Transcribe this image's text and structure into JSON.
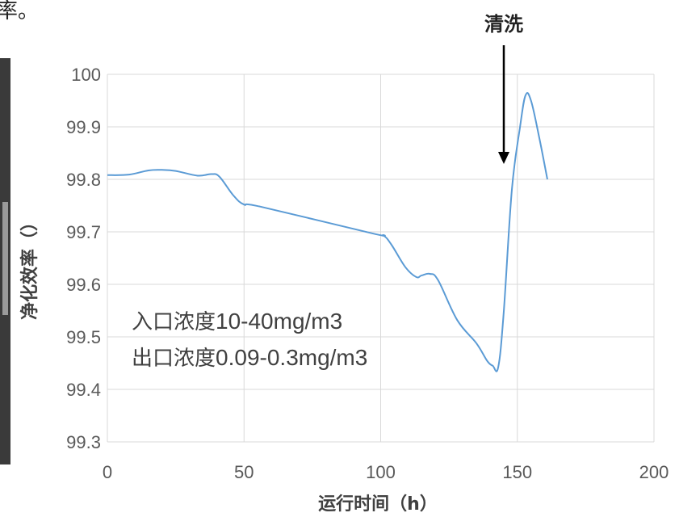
{
  "page_fragment": "率。",
  "chart_data": {
    "type": "line",
    "xlabel": "运行时间（h）",
    "ylabel": "净化效率（）",
    "xlim": [
      0,
      200
    ],
    "ylim": [
      99.3,
      100
    ],
    "xticks": [
      0,
      50,
      100,
      150,
      200
    ],
    "yticks": [
      99.3,
      99.4,
      99.5,
      99.6,
      99.7,
      99.8,
      99.9,
      100
    ],
    "xtick_labels": [
      "0",
      "50",
      "100",
      "150",
      "200"
    ],
    "ytick_labels": [
      "99.3",
      "99.4",
      "99.5",
      "99.6",
      "99.7",
      "99.8",
      "99.9",
      "100"
    ],
    "grid": true,
    "line_color": "#5b9bd5",
    "series": [
      {
        "x": [
          0,
          8,
          15,
          20,
          25,
          33,
          38,
          41,
          46,
          50,
          56,
          97,
          101,
          104,
          109,
          113,
          115,
          118,
          121,
          128,
          135,
          139,
          141,
          143,
          145,
          148,
          151,
          153,
          155,
          158,
          161
        ],
        "y": [
          99.808,
          99.809,
          99.817,
          99.818,
          99.816,
          99.807,
          99.81,
          99.805,
          99.77,
          99.752,
          99.748,
          99.697,
          99.693,
          99.675,
          99.633,
          99.614,
          99.617,
          99.62,
          99.608,
          99.532,
          99.488,
          99.454,
          99.445,
          99.442,
          99.545,
          99.78,
          99.9,
          99.96,
          99.95,
          99.88,
          99.8
        ]
      }
    ],
    "annotations": [
      {
        "prefix": "入口浓度",
        "value": "10-40mg/m3"
      },
      {
        "prefix": "出口浓度",
        "value": "0.09-0.3mg/m3"
      }
    ],
    "marker": {
      "label": "清洗",
      "x": 145
    }
  }
}
